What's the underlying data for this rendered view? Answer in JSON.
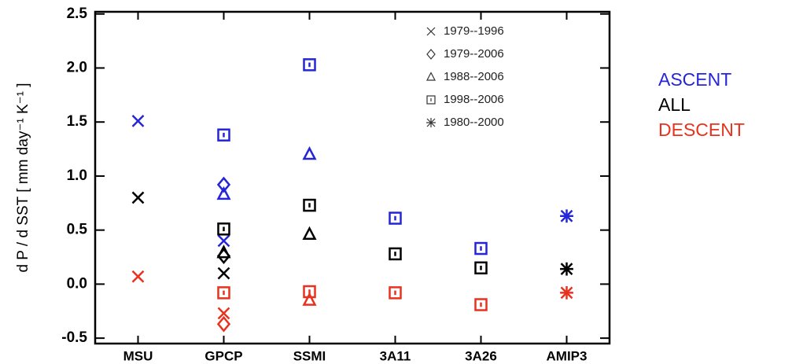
{
  "chart_data": {
    "type": "scatter",
    "ylabel": "d P / d SST [ mm day⁻¹ K⁻¹ ]",
    "categories": [
      "MSU",
      "GPCP",
      "SSMI",
      "3A11",
      "3A26",
      "AMIP3"
    ],
    "ylim": [
      -0.55,
      2.52
    ],
    "yticks": [
      -0.5,
      {
        "value": 0,
        "label": "0.0"
      },
      0.5,
      {
        "value": 1,
        "label": "1.0"
      },
      1.5,
      {
        "value": 2,
        "label": "2.0"
      },
      2.5
    ],
    "regimes": [
      {
        "name": "ASCENT",
        "color": "#2525d8"
      },
      {
        "name": "ALL",
        "color": "#000000"
      },
      {
        "name": "DESCENT",
        "color": "#e8321e"
      }
    ],
    "series": [
      {
        "name": "1979--1996",
        "marker": "x",
        "values": [
          [
            1.51,
            0.4,
            null,
            null,
            null,
            null
          ],
          [
            0.8,
            0.1,
            null,
            null,
            null,
            null
          ],
          [
            0.07,
            -0.27,
            null,
            null,
            null,
            null
          ]
        ]
      },
      {
        "name": "1979--2006",
        "marker": "diamond",
        "values": [
          [
            null,
            0.92,
            null,
            null,
            null,
            null
          ],
          [
            null,
            0.26,
            null,
            null,
            null,
            null
          ],
          [
            null,
            -0.37,
            null,
            null,
            null,
            null
          ]
        ]
      },
      {
        "name": "1988--2006",
        "marker": "triangle",
        "values": [
          [
            null,
            0.83,
            1.2,
            null,
            null,
            null
          ],
          [
            null,
            0.29,
            0.46,
            null,
            null,
            null
          ],
          [
            null,
            null,
            -0.15,
            null,
            null,
            null
          ]
        ]
      },
      {
        "name": "1998--2006",
        "marker": "square",
        "values": [
          [
            null,
            1.38,
            2.03,
            0.61,
            0.33,
            null
          ],
          [
            null,
            0.51,
            0.73,
            0.28,
            0.15,
            null
          ],
          [
            null,
            -0.08,
            -0.07,
            -0.08,
            -0.19,
            null
          ]
        ]
      },
      {
        "name": "1980--2000",
        "marker": "asterisk",
        "values": [
          [
            null,
            null,
            null,
            null,
            null,
            0.63
          ],
          [
            null,
            null,
            null,
            null,
            null,
            0.14
          ],
          [
            null,
            null,
            null,
            null,
            null,
            -0.08
          ]
        ]
      }
    ]
  }
}
